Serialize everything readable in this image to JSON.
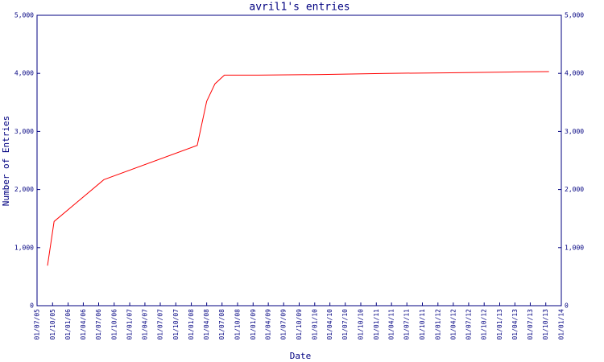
{
  "chart_data": {
    "type": "line",
    "title": "avril1's entries",
    "x_label": "Date",
    "y_label": "Number of Entries",
    "xlim": [
      "01/07/05",
      "01/01/14"
    ],
    "xticks": [
      "01/07/05",
      "01/10/05",
      "01/01/06",
      "01/04/06",
      "01/07/06",
      "01/10/06",
      "01/01/07",
      "01/04/07",
      "01/07/07",
      "01/10/07",
      "01/01/08",
      "01/04/08",
      "01/07/08",
      "01/10/08",
      "01/01/09",
      "01/04/09",
      "01/07/09",
      "01/10/09",
      "01/01/10",
      "01/04/10",
      "01/07/10",
      "01/10/10",
      "01/01/11",
      "01/04/11",
      "01/07/11",
      "01/10/11",
      "01/01/12",
      "01/04/12",
      "01/07/12",
      "01/10/12",
      "01/01/13",
      "01/04/13",
      "01/07/13",
      "01/10/13",
      "01/01/14"
    ],
    "ylim": [
      0,
      5000
    ],
    "yticks": [
      0,
      {
        "value": 1000,
        "label": "1,000"
      },
      {
        "value": 2000,
        "label": "2,000"
      },
      {
        "value": 3000,
        "label": "3,000"
      },
      {
        "value": 4000,
        "label": "4,000"
      },
      {
        "value": 5000,
        "label": "5,000"
      }
    ],
    "x": [
      "01/09/05",
      "10/10/05",
      "01/08/06",
      "05/02/08",
      "01/04/08",
      "20/05/08",
      "15/07/08",
      "01/02/09",
      "15/02/10",
      "01/03/11",
      "15/03/12",
      "01/04/13",
      "20/10/13"
    ],
    "series": [
      {
        "name": "entries",
        "color": "#ff0000",
        "values": [
          690,
          1450,
          2170,
          2760,
          3520,
          3820,
          3970,
          3970,
          3980,
          4000,
          4010,
          4025,
          4030
        ]
      }
    ]
  }
}
